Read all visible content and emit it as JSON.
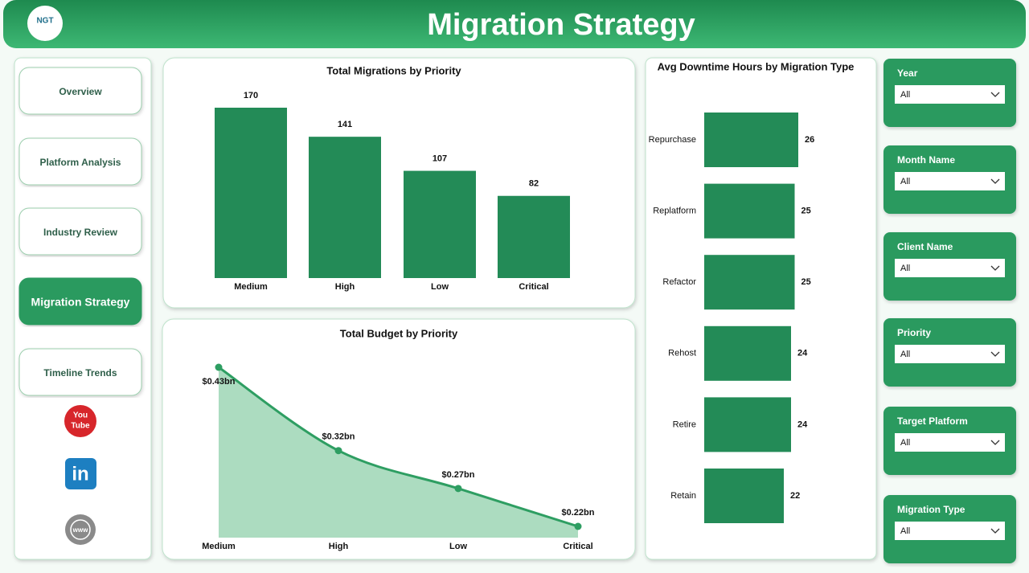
{
  "header": {
    "title": "Migration Strategy",
    "logo": "NGT"
  },
  "nav": [
    "Overview",
    "Platform Analysis",
    "Industry Review",
    "Migration Strategy",
    "Timeline Trends"
  ],
  "icons": {
    "youtube": [
      "You",
      "Tube"
    ],
    "linkedin": "in",
    "web": "www"
  },
  "chart_data": [
    {
      "type": "bar",
      "title": "Total Migrations by Priority",
      "categories": [
        "Medium",
        "High",
        "Low",
        "Critical"
      ],
      "values": [
        170,
        141,
        107,
        82
      ],
      "color": "#238b57"
    },
    {
      "type": "area",
      "title": "Total Budget by Priority",
      "categories": [
        "Medium",
        "High",
        "Low",
        "Critical"
      ],
      "values": [
        0.43,
        0.32,
        0.27,
        0.22
      ],
      "value_labels": [
        "$0.43bn",
        "$0.32bn",
        "$0.27bn",
        "$0.22bn"
      ],
      "color": "#2e9e62"
    },
    {
      "type": "hbar",
      "title": "Avg Downtime Hours by Migration Type",
      "categories": [
        "Repurchase",
        "Replatform",
        "Refactor",
        "Rehost",
        "Retire",
        "Retain"
      ],
      "values": [
        26,
        25,
        25,
        24,
        24,
        22
      ],
      "color": "#238b57"
    }
  ],
  "filters": [
    {
      "label": "Year",
      "value": "All"
    },
    {
      "label": "Month Name",
      "value": "All"
    },
    {
      "label": "Client Name",
      "value": "All"
    },
    {
      "label": "Priority",
      "value": "All"
    },
    {
      "label": "Target Platform",
      "value": "All"
    },
    {
      "label": "Migration Type",
      "value": "All"
    }
  ]
}
